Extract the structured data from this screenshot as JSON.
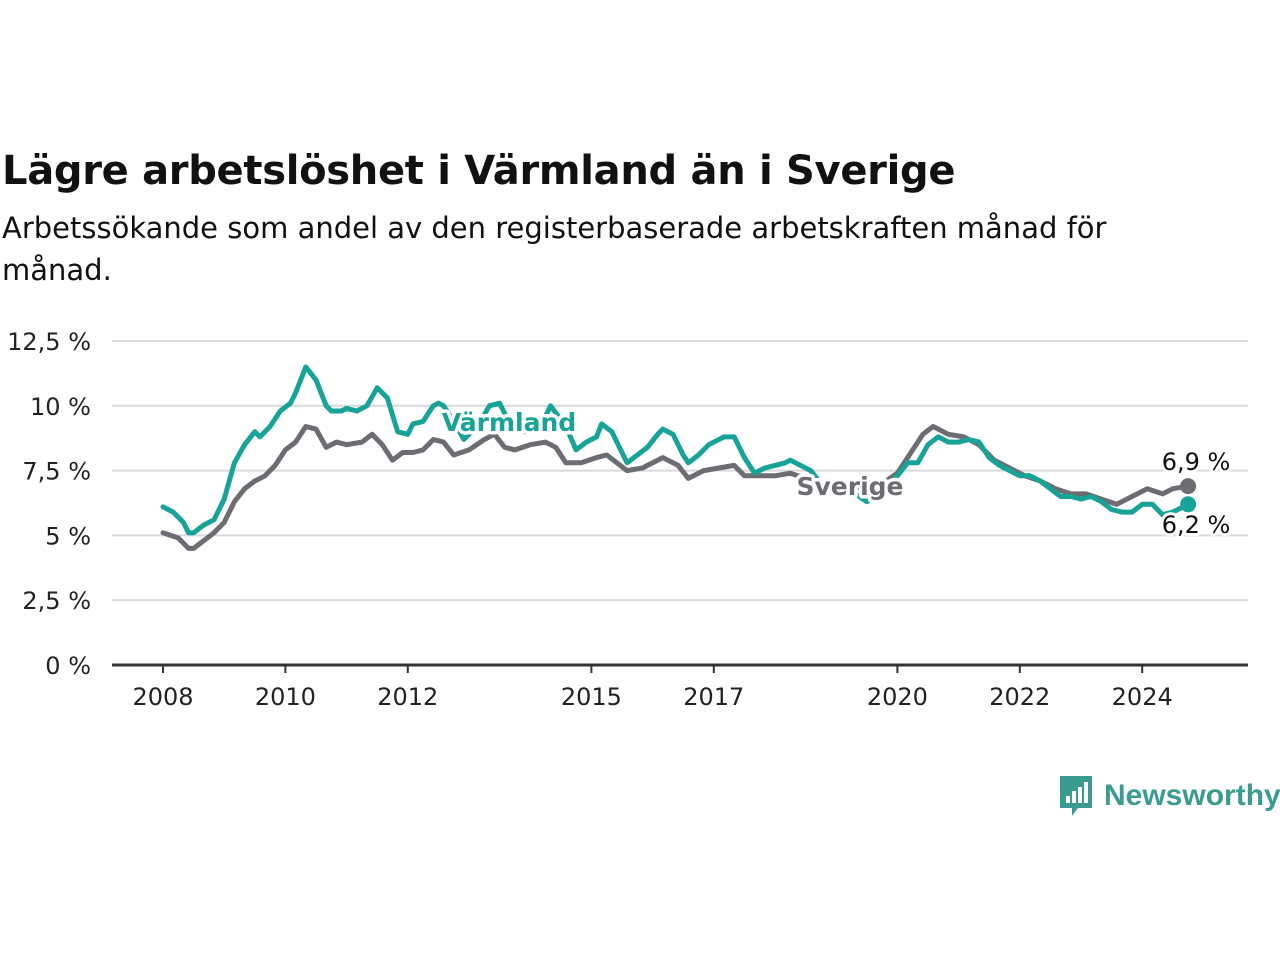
{
  "chart_data": {
    "type": "line",
    "title": "Lägre arbetslöshet i Värmland än i Sverige",
    "subtitle": "Arbetssökande som andel av den registerbaserade arbetskraften månad för månad.",
    "xlabel": "",
    "ylabel": "",
    "x_range": [
      "2008-01",
      "2024-10"
    ],
    "ylim": [
      0,
      12.5
    ],
    "y_ticks": [
      0,
      2.5,
      5,
      7.5,
      10,
      12.5
    ],
    "y_tick_labels": [
      "0 %",
      "2,5 %",
      "5 %",
      "7,5 %",
      "10 %",
      "12,5 %"
    ],
    "x_ticks": [
      "2008-01",
      "2010-01",
      "2012-01",
      "2015-01",
      "2017-01",
      "2020-01",
      "2022-01",
      "2024-01"
    ],
    "x_tick_labels": [
      "2008",
      "2010",
      "2012",
      "2015",
      "2017",
      "2020",
      "2022",
      "2024"
    ],
    "grid": true,
    "legend": "inline labels on lines",
    "series": [
      {
        "name": "Värmland",
        "color": "#17a398",
        "points": [
          [
            "2008-01",
            6.1
          ],
          [
            "2008-03",
            5.9
          ],
          [
            "2008-05",
            5.5
          ],
          [
            "2008-06",
            5.1
          ],
          [
            "2008-07",
            5.1
          ],
          [
            "2008-09",
            5.4
          ],
          [
            "2008-11",
            5.6
          ],
          [
            "2009-01",
            6.4
          ],
          [
            "2009-03",
            7.8
          ],
          [
            "2009-05",
            8.5
          ],
          [
            "2009-07",
            9.0
          ],
          [
            "2009-08",
            8.8
          ],
          [
            "2009-10",
            9.2
          ],
          [
            "2009-12",
            9.8
          ],
          [
            "2010-02",
            10.1
          ],
          [
            "2010-03",
            10.5
          ],
          [
            "2010-05",
            11.5
          ],
          [
            "2010-07",
            11.0
          ],
          [
            "2010-09",
            10.0
          ],
          [
            "2010-10",
            9.8
          ],
          [
            "2010-12",
            9.8
          ],
          [
            "2011-01",
            9.9
          ],
          [
            "2011-03",
            9.8
          ],
          [
            "2011-05",
            10.0
          ],
          [
            "2011-07",
            10.7
          ],
          [
            "2011-09",
            10.3
          ],
          [
            "2011-11",
            9.0
          ],
          [
            "2012-01",
            8.9
          ],
          [
            "2012-02",
            9.3
          ],
          [
            "2012-04",
            9.4
          ],
          [
            "2012-06",
            10.0
          ],
          [
            "2012-07",
            10.1
          ],
          [
            "2012-08",
            10.0
          ],
          [
            "2012-10",
            9.4
          ],
          [
            "2012-12",
            8.7
          ],
          [
            "2013-03",
            9.3
          ],
          [
            "2013-05",
            10.0
          ],
          [
            "2013-07",
            10.1
          ],
          [
            "2013-09",
            9.3
          ],
          [
            "2013-12",
            9.0
          ],
          [
            "2014-03",
            9.2
          ],
          [
            "2014-05",
            10.0
          ],
          [
            "2014-08",
            9.2
          ],
          [
            "2014-10",
            8.3
          ],
          [
            "2014-12",
            8.6
          ],
          [
            "2015-02",
            8.8
          ],
          [
            "2015-03",
            9.3
          ],
          [
            "2015-05",
            9.0
          ],
          [
            "2015-07",
            8.2
          ],
          [
            "2015-08",
            7.8
          ],
          [
            "2015-10",
            8.1
          ],
          [
            "2015-12",
            8.4
          ],
          [
            "2016-02",
            8.9
          ],
          [
            "2016-03",
            9.1
          ],
          [
            "2016-05",
            8.9
          ],
          [
            "2016-07",
            8.1
          ],
          [
            "2016-08",
            7.8
          ],
          [
            "2016-10",
            8.1
          ],
          [
            "2016-12",
            8.5
          ],
          [
            "2017-03",
            8.8
          ],
          [
            "2017-05",
            8.8
          ],
          [
            "2017-07",
            8.0
          ],
          [
            "2017-09",
            7.4
          ],
          [
            "2017-11",
            7.6
          ],
          [
            "2018-01",
            7.7
          ],
          [
            "2018-03",
            7.8
          ],
          [
            "2018-04",
            7.9
          ],
          [
            "2018-06",
            7.7
          ],
          [
            "2018-08",
            7.5
          ],
          [
            "2018-10",
            7.0
          ],
          [
            "2019-01",
            6.9
          ],
          [
            "2019-04",
            6.7
          ],
          [
            "2019-07",
            6.3
          ],
          [
            "2019-10",
            6.6
          ],
          [
            "2020-01",
            7.3
          ],
          [
            "2020-03",
            7.8
          ],
          [
            "2020-05",
            7.8
          ],
          [
            "2020-07",
            8.5
          ],
          [
            "2020-09",
            8.8
          ],
          [
            "2020-11",
            8.6
          ],
          [
            "2021-01",
            8.6
          ],
          [
            "2021-03",
            8.7
          ],
          [
            "2021-05",
            8.6
          ],
          [
            "2021-07",
            8.0
          ],
          [
            "2021-09",
            7.7
          ],
          [
            "2021-11",
            7.5
          ],
          [
            "2022-01",
            7.3
          ],
          [
            "2022-03",
            7.3
          ],
          [
            "2022-05",
            7.1
          ],
          [
            "2022-07",
            6.8
          ],
          [
            "2022-09",
            6.5
          ],
          [
            "2022-11",
            6.5
          ],
          [
            "2023-01",
            6.4
          ],
          [
            "2023-03",
            6.5
          ],
          [
            "2023-05",
            6.3
          ],
          [
            "2023-07",
            6.0
          ],
          [
            "2023-09",
            5.9
          ],
          [
            "2023-11",
            5.9
          ],
          [
            "2024-01",
            6.2
          ],
          [
            "2024-03",
            6.2
          ],
          [
            "2024-05",
            5.8
          ],
          [
            "2024-07",
            5.9
          ],
          [
            "2024-09",
            6.1
          ],
          [
            "2024-10",
            6.2
          ]
        ]
      },
      {
        "name": "Sverige",
        "color": "#6d6c72",
        "points": [
          [
            "2008-01",
            5.1
          ],
          [
            "2008-04",
            4.9
          ],
          [
            "2008-06",
            4.5
          ],
          [
            "2008-07",
            4.5
          ],
          [
            "2008-09",
            4.8
          ],
          [
            "2008-11",
            5.1
          ],
          [
            "2009-01",
            5.5
          ],
          [
            "2009-03",
            6.3
          ],
          [
            "2009-05",
            6.8
          ],
          [
            "2009-07",
            7.1
          ],
          [
            "2009-09",
            7.3
          ],
          [
            "2009-11",
            7.7
          ],
          [
            "2010-01",
            8.3
          ],
          [
            "2010-03",
            8.6
          ],
          [
            "2010-05",
            9.2
          ],
          [
            "2010-07",
            9.1
          ],
          [
            "2010-09",
            8.4
          ],
          [
            "2010-11",
            8.6
          ],
          [
            "2011-01",
            8.5
          ],
          [
            "2011-04",
            8.6
          ],
          [
            "2011-06",
            8.9
          ],
          [
            "2011-08",
            8.5
          ],
          [
            "2011-10",
            7.9
          ],
          [
            "2011-12",
            8.2
          ],
          [
            "2012-02",
            8.2
          ],
          [
            "2012-04",
            8.3
          ],
          [
            "2012-06",
            8.7
          ],
          [
            "2012-08",
            8.6
          ],
          [
            "2012-10",
            8.1
          ],
          [
            "2013-01",
            8.3
          ],
          [
            "2013-04",
            8.7
          ],
          [
            "2013-06",
            8.9
          ],
          [
            "2013-08",
            8.4
          ],
          [
            "2013-10",
            8.3
          ],
          [
            "2014-01",
            8.5
          ],
          [
            "2014-04",
            8.6
          ],
          [
            "2014-06",
            8.4
          ],
          [
            "2014-08",
            7.8
          ],
          [
            "2014-11",
            7.8
          ],
          [
            "2015-02",
            8.0
          ],
          [
            "2015-04",
            8.1
          ],
          [
            "2015-06",
            7.8
          ],
          [
            "2015-08",
            7.5
          ],
          [
            "2015-11",
            7.6
          ],
          [
            "2016-03",
            8.0
          ],
          [
            "2016-06",
            7.7
          ],
          [
            "2016-08",
            7.2
          ],
          [
            "2016-11",
            7.5
          ],
          [
            "2017-02",
            7.6
          ],
          [
            "2017-05",
            7.7
          ],
          [
            "2017-07",
            7.3
          ],
          [
            "2017-10",
            7.3
          ],
          [
            "2018-01",
            7.3
          ],
          [
            "2018-04",
            7.4
          ],
          [
            "2018-07",
            7.2
          ],
          [
            "2018-10",
            7.0
          ],
          [
            "2019-01",
            6.9
          ],
          [
            "2019-04",
            6.9
          ],
          [
            "2019-07",
            6.8
          ],
          [
            "2019-10",
            7.0
          ],
          [
            "2020-01",
            7.4
          ],
          [
            "2020-04",
            8.3
          ],
          [
            "2020-06",
            8.9
          ],
          [
            "2020-08",
            9.2
          ],
          [
            "2020-11",
            8.9
          ],
          [
            "2021-02",
            8.8
          ],
          [
            "2021-05",
            8.5
          ],
          [
            "2021-08",
            7.9
          ],
          [
            "2021-11",
            7.6
          ],
          [
            "2022-02",
            7.3
          ],
          [
            "2022-05",
            7.1
          ],
          [
            "2022-08",
            6.8
          ],
          [
            "2022-11",
            6.6
          ],
          [
            "2023-02",
            6.6
          ],
          [
            "2023-05",
            6.4
          ],
          [
            "2023-08",
            6.2
          ],
          [
            "2023-11",
            6.5
          ],
          [
            "2024-02",
            6.8
          ],
          [
            "2024-05",
            6.6
          ],
          [
            "2024-07",
            6.8
          ],
          [
            "2024-10",
            6.9
          ]
        ]
      }
    ],
    "series_labels": {
      "varmland": "Värmland",
      "sverige": "Sverige"
    },
    "end_labels": {
      "sverige": "6,9 %",
      "varmland": "6,2 %"
    }
  },
  "brand": {
    "name": "Newsworthy",
    "color": "#3a9c90",
    "icon": "newsworthy-logo-icon"
  }
}
